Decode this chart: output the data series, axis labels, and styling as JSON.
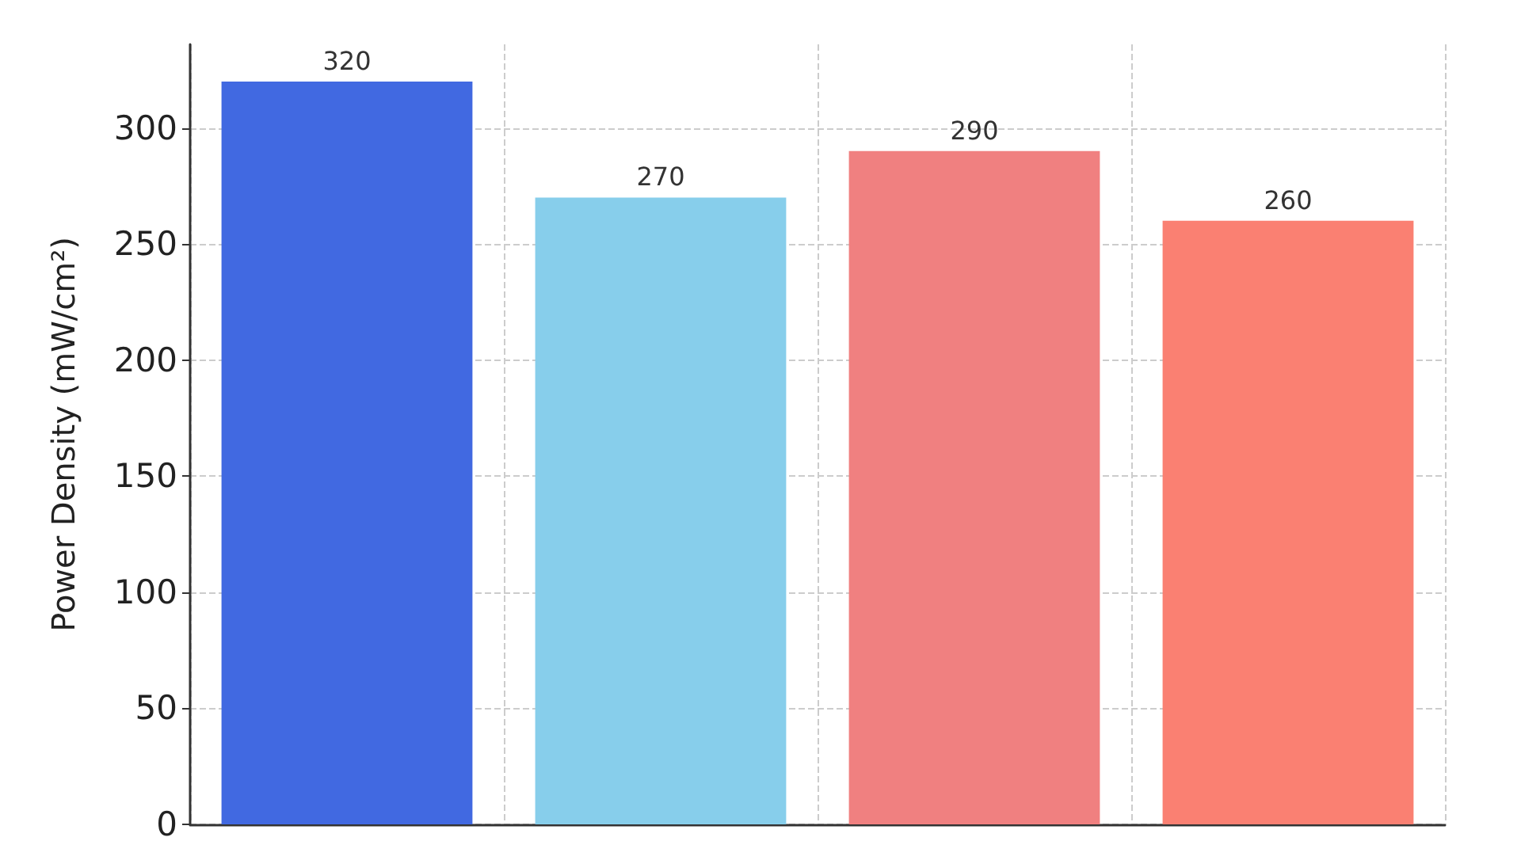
{
  "chart_data": {
    "type": "bar",
    "ylabel": "Power Density (mW/cm²)",
    "categories": [
      null,
      null,
      null,
      null
    ],
    "values": [
      320,
      270,
      290,
      260
    ],
    "colors": [
      "#4169e1",
      "#87ceeb",
      "#f08080",
      "#fa8072"
    ],
    "ylim": [
      0,
      336
    ],
    "yticks": [
      0,
      50,
      100,
      150,
      200,
      250,
      300
    ],
    "grid": true,
    "data_labels": true
  }
}
